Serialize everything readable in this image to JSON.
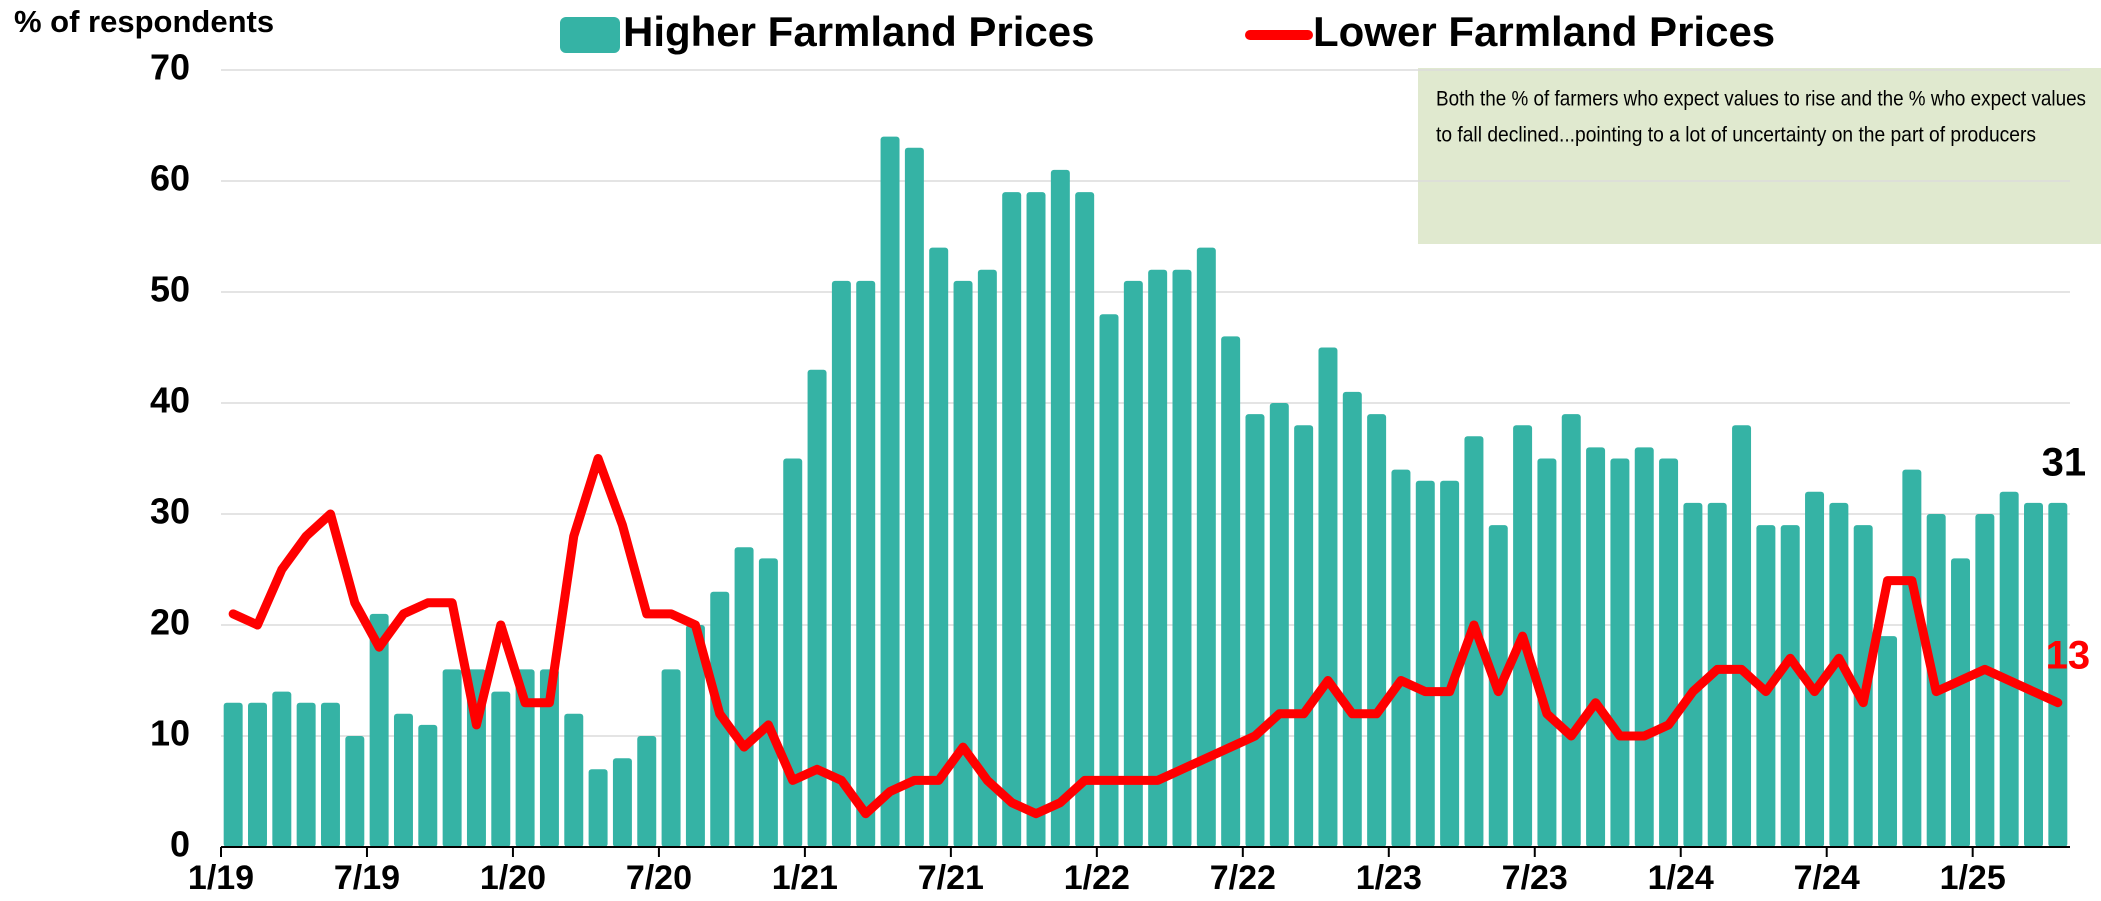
{
  "chart_data": {
    "type": "bar_line",
    "y_axis_label": "% of respondents",
    "annotation": [
      "Both the % of farmers who expect values to rise and the % who expect values",
      "to fall declined...pointing to a lot of uncertainty on the part of producers"
    ],
    "categories": [
      "1/19",
      null,
      null,
      null,
      null,
      null,
      "7/19",
      null,
      null,
      null,
      null,
      null,
      "1/20",
      null,
      null,
      null,
      null,
      null,
      "7/20",
      null,
      null,
      null,
      null,
      null,
      "1/21",
      null,
      null,
      null,
      null,
      null,
      "7/21",
      null,
      null,
      null,
      null,
      null,
      "1/22",
      null,
      null,
      null,
      null,
      null,
      "7/22",
      null,
      null,
      null,
      null,
      null,
      "1/23",
      null,
      null,
      null,
      null,
      null,
      "7/23",
      null,
      null,
      null,
      null,
      null,
      "1/24",
      null,
      null,
      null,
      null,
      null,
      "7/24",
      null,
      null,
      null,
      null,
      null,
      "1/25",
      null,
      null,
      null
    ],
    "series": [
      {
        "name": "Higher Farmland Prices",
        "type": "bar",
        "color": "#35b3a5",
        "values": [
          13,
          13,
          14,
          13,
          13,
          10,
          21,
          12,
          11,
          16,
          16,
          14,
          16,
          16,
          12,
          7,
          8,
          10,
          16,
          20,
          23,
          27,
          26,
          35,
          43,
          51,
          51,
          64,
          63,
          54,
          51,
          52,
          59,
          59,
          61,
          59,
          48,
          51,
          52,
          52,
          54,
          46,
          39,
          40,
          38,
          45,
          41,
          39,
          34,
          33,
          33,
          37,
          29,
          38,
          35,
          39,
          36,
          35,
          36,
          35,
          31,
          31,
          38,
          29,
          29,
          32,
          31,
          29,
          19,
          34,
          30,
          26,
          30,
          32,
          31,
          31
        ]
      },
      {
        "name": "Lower Farmland Prices",
        "type": "line",
        "color": "#ff0000",
        "values": [
          21,
          20,
          25,
          28,
          30,
          22,
          18,
          21,
          22,
          22,
          11,
          20,
          13,
          13,
          28,
          35,
          29,
          21,
          21,
          20,
          12,
          9,
          11,
          6,
          7,
          6,
          3,
          5,
          6,
          6,
          9,
          6,
          4,
          3,
          4,
          6,
          6,
          6,
          6,
          7,
          8,
          9,
          10,
          12,
          12,
          15,
          12,
          12,
          15,
          14,
          14,
          20,
          14,
          19,
          12,
          10,
          13,
          10,
          10,
          11,
          14,
          16,
          16,
          14,
          17,
          14,
          17,
          13,
          24,
          24,
          14,
          15,
          16,
          15,
          14,
          13
        ]
      }
    ],
    "ylim": [
      0,
      70
    ],
    "yticks": [
      0,
      10,
      20,
      30,
      40,
      50,
      60,
      70
    ],
    "grid": true
  }
}
